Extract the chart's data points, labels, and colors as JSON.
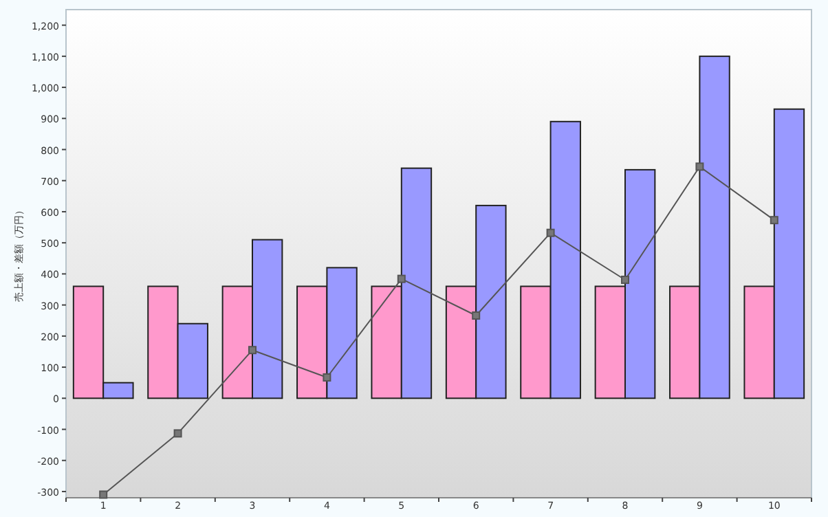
{
  "chart_data": {
    "type": "bar",
    "ylabel": "売上額・差額（万円）",
    "categories": [
      "1",
      "2",
      "3",
      "4",
      "5",
      "6",
      "7",
      "8",
      "9",
      "10"
    ],
    "series": [
      {
        "type": "bar",
        "color": "#ff99cc",
        "values": [
          360,
          360,
          360,
          360,
          360,
          360,
          360,
          360,
          360,
          360
        ]
      },
      {
        "type": "bar",
        "color": "#9999ff",
        "values": [
          50,
          240,
          510,
          420,
          740,
          620,
          890,
          735,
          1100,
          930
        ]
      },
      {
        "type": "line",
        "color": "#555555",
        "marker": "square",
        "values": [
          -310,
          -113,
          155,
          67,
          384,
          266,
          532,
          381,
          745,
          573
        ]
      }
    ],
    "ylim": [
      -320,
      1250
    ],
    "yticks": [
      -300,
      -200,
      -100,
      0,
      100,
      200,
      300,
      400,
      500,
      600,
      700,
      800,
      900,
      {
        "value": 1000,
        "label": "1,000"
      },
      {
        "value": 1100,
        "label": "1,100"
      },
      {
        "value": 1200,
        "label": "1,200"
      }
    ]
  }
}
